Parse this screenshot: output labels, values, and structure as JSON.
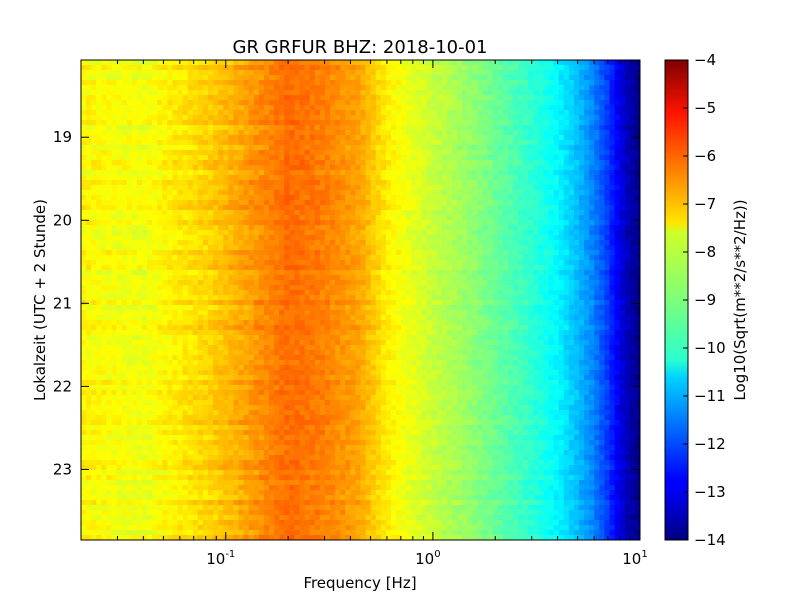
{
  "chart_data": {
    "type": "heatmap",
    "title": "GR GRFUR BHZ: 2018-10-01",
    "xlabel": "Frequency [Hz]",
    "ylabel": "Lokalzeit (UTC + 2 Stunde)",
    "x_scale": "log",
    "xlim": [
      0.02,
      10
    ],
    "x_ticks": [
      {
        "value": 0.1,
        "base": "10",
        "exp": "-1"
      },
      {
        "value": 1,
        "base": "10",
        "exp": "0"
      },
      {
        "value": 10,
        "base": "10",
        "exp": "1"
      }
    ],
    "ylim": [
      18.07,
      23.85
    ],
    "y_inverted": true,
    "y_ticks": [
      19,
      20,
      21,
      22,
      23
    ],
    "y_tick_labels": [
      "19",
      "20",
      "21",
      "22",
      "23"
    ],
    "colormap": "jet",
    "colorbar": {
      "label": "Log10(Sqrt(m**2/s**2/Hz))",
      "range": [
        -14,
        -4
      ],
      "ticks": [
        -4,
        -5,
        -6,
        -7,
        -8,
        -9,
        -10,
        -11,
        -12,
        -13,
        -14
      ],
      "tick_labels": [
        "−4",
        "−5",
        "−6",
        "−7",
        "−8",
        "−9",
        "−10",
        "−11",
        "−12",
        "−13",
        "−14"
      ]
    },
    "spectrum_profile": {
      "frequency_hz": [
        0.02,
        0.04,
        0.06,
        0.08,
        0.1,
        0.13,
        0.2,
        0.3,
        0.45,
        0.6,
        0.8,
        1.0,
        1.3,
        2.0,
        3.0,
        4.0,
        5.0,
        6.0,
        7.0,
        8.0,
        9.0,
        10.0
      ],
      "level": [
        -7.7,
        -7.9,
        -7.55,
        -7.35,
        -7.1,
        -6.8,
        -6.3,
        -6.5,
        -6.9,
        -7.6,
        -8.0,
        -8.3,
        -8.6,
        -9.2,
        -9.8,
        -10.3,
        -10.9,
        -11.5,
        -12.2,
        -13.0,
        -13.6,
        -13.9
      ]
    }
  }
}
